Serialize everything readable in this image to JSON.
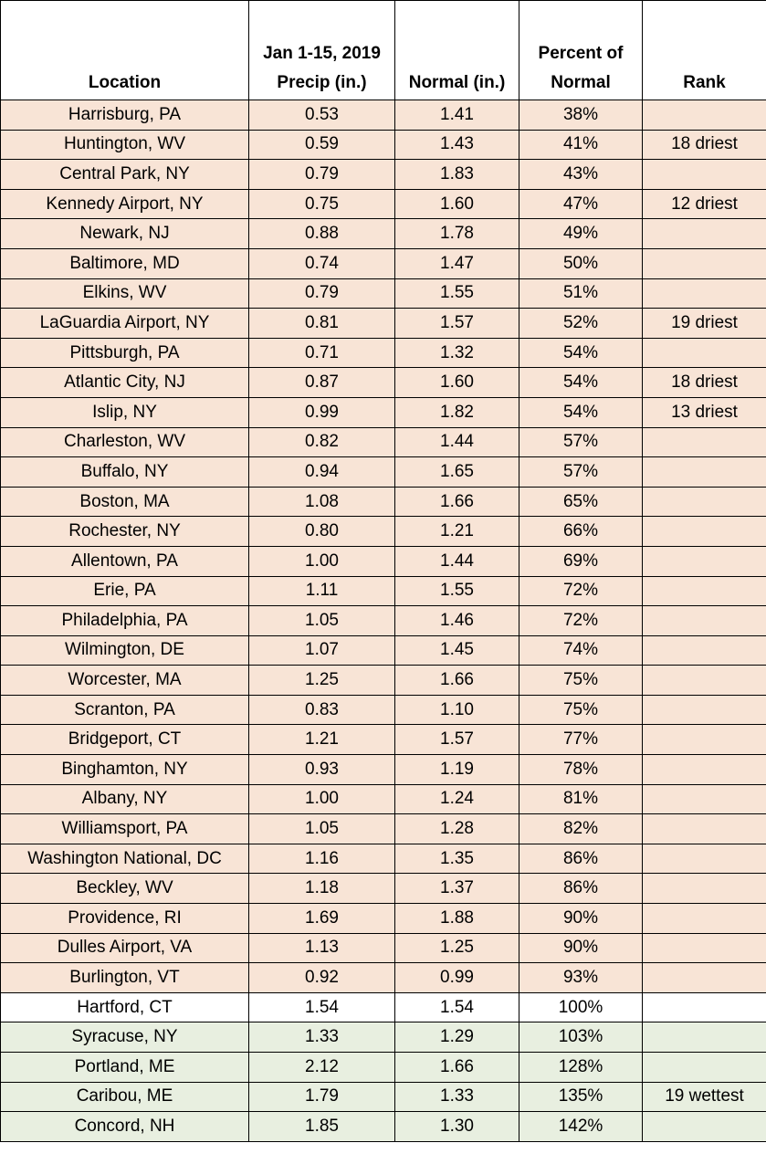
{
  "headers": {
    "location": "Location",
    "precip_line1": "Jan 1-15, 2019",
    "precip_line2": "Precip (in.)",
    "normal": "Normal (in.)",
    "percent_line1": "Percent of",
    "percent_line2": "Normal",
    "rank": "Rank"
  },
  "colors": {
    "below_normal_row": "#f8e4d6",
    "normal_row": "#ffffff",
    "above_normal_row": "#e8efe0"
  },
  "rows": [
    {
      "location": "Harrisburg, PA",
      "precip": "0.53",
      "normal": "1.41",
      "percent": "38%",
      "rank": "",
      "category": "dry"
    },
    {
      "location": "Huntington, WV",
      "precip": "0.59",
      "normal": "1.43",
      "percent": "41%",
      "rank": "18 driest",
      "category": "dry"
    },
    {
      "location": "Central Park, NY",
      "precip": "0.79",
      "normal": "1.83",
      "percent": "43%",
      "rank": "",
      "category": "dry"
    },
    {
      "location": "Kennedy Airport, NY",
      "precip": "0.75",
      "normal": "1.60",
      "percent": "47%",
      "rank": "12 driest",
      "category": "dry"
    },
    {
      "location": "Newark, NJ",
      "precip": "0.88",
      "normal": "1.78",
      "percent": "49%",
      "rank": "",
      "category": "dry"
    },
    {
      "location": "Baltimore, MD",
      "precip": "0.74",
      "normal": "1.47",
      "percent": "50%",
      "rank": "",
      "category": "dry"
    },
    {
      "location": "Elkins, WV",
      "precip": "0.79",
      "normal": "1.55",
      "percent": "51%",
      "rank": "",
      "category": "dry"
    },
    {
      "location": "LaGuardia Airport, NY",
      "precip": "0.81",
      "normal": "1.57",
      "percent": "52%",
      "rank": "19 driest",
      "category": "dry"
    },
    {
      "location": "Pittsburgh, PA",
      "precip": "0.71",
      "normal": "1.32",
      "percent": "54%",
      "rank": "",
      "category": "dry"
    },
    {
      "location": "Atlantic City, NJ",
      "precip": "0.87",
      "normal": "1.60",
      "percent": "54%",
      "rank": "18 driest",
      "category": "dry"
    },
    {
      "location": "Islip, NY",
      "precip": "0.99",
      "normal": "1.82",
      "percent": "54%",
      "rank": "13 driest",
      "category": "dry"
    },
    {
      "location": "Charleston, WV",
      "precip": "0.82",
      "normal": "1.44",
      "percent": "57%",
      "rank": "",
      "category": "dry"
    },
    {
      "location": "Buffalo, NY",
      "precip": "0.94",
      "normal": "1.65",
      "percent": "57%",
      "rank": "",
      "category": "dry"
    },
    {
      "location": "Boston, MA",
      "precip": "1.08",
      "normal": "1.66",
      "percent": "65%",
      "rank": "",
      "category": "dry"
    },
    {
      "location": "Rochester, NY",
      "precip": "0.80",
      "normal": "1.21",
      "percent": "66%",
      "rank": "",
      "category": "dry"
    },
    {
      "location": "Allentown, PA",
      "precip": "1.00",
      "normal": "1.44",
      "percent": "69%",
      "rank": "",
      "category": "dry"
    },
    {
      "location": "Erie, PA",
      "precip": "1.11",
      "normal": "1.55",
      "percent": "72%",
      "rank": "",
      "category": "dry"
    },
    {
      "location": "Philadelphia, PA",
      "precip": "1.05",
      "normal": "1.46",
      "percent": "72%",
      "rank": "",
      "category": "dry"
    },
    {
      "location": "Wilmington, DE",
      "precip": "1.07",
      "normal": "1.45",
      "percent": "74%",
      "rank": "",
      "category": "dry"
    },
    {
      "location": "Worcester, MA",
      "precip": "1.25",
      "normal": "1.66",
      "percent": "75%",
      "rank": "",
      "category": "dry"
    },
    {
      "location": "Scranton, PA",
      "precip": "0.83",
      "normal": "1.10",
      "percent": "75%",
      "rank": "",
      "category": "dry"
    },
    {
      "location": "Bridgeport, CT",
      "precip": "1.21",
      "normal": "1.57",
      "percent": "77%",
      "rank": "",
      "category": "dry"
    },
    {
      "location": "Binghamton, NY",
      "precip": "0.93",
      "normal": "1.19",
      "percent": "78%",
      "rank": "",
      "category": "dry"
    },
    {
      "location": "Albany, NY",
      "precip": "1.00",
      "normal": "1.24",
      "percent": "81%",
      "rank": "",
      "category": "dry"
    },
    {
      "location": "Williamsport, PA",
      "precip": "1.05",
      "normal": "1.28",
      "percent": "82%",
      "rank": "",
      "category": "dry"
    },
    {
      "location": "Washington National, DC",
      "precip": "1.16",
      "normal": "1.35",
      "percent": "86%",
      "rank": "",
      "category": "dry"
    },
    {
      "location": "Beckley, WV",
      "precip": "1.18",
      "normal": "1.37",
      "percent": "86%",
      "rank": "",
      "category": "dry"
    },
    {
      "location": "Providence, RI",
      "precip": "1.69",
      "normal": "1.88",
      "percent": "90%",
      "rank": "",
      "category": "dry"
    },
    {
      "location": "Dulles Airport, VA",
      "precip": "1.13",
      "normal": "1.25",
      "percent": "90%",
      "rank": "",
      "category": "dry"
    },
    {
      "location": "Burlington, VT",
      "precip": "0.92",
      "normal": "0.99",
      "percent": "93%",
      "rank": "",
      "category": "dry"
    },
    {
      "location": "Hartford, CT",
      "precip": "1.54",
      "normal": "1.54",
      "percent": "100%",
      "rank": "",
      "category": "normal"
    },
    {
      "location": "Syracuse, NY",
      "precip": "1.33",
      "normal": "1.29",
      "percent": "103%",
      "rank": "",
      "category": "wet"
    },
    {
      "location": "Portland, ME",
      "precip": "2.12",
      "normal": "1.66",
      "percent": "128%",
      "rank": "",
      "category": "wet"
    },
    {
      "location": "Caribou, ME",
      "precip": "1.79",
      "normal": "1.33",
      "percent": "135%",
      "rank": "19 wettest",
      "category": "wet"
    },
    {
      "location": "Concord, NH",
      "precip": "1.85",
      "normal": "1.30",
      "percent": "142%",
      "rank": "",
      "category": "wet"
    }
  ]
}
